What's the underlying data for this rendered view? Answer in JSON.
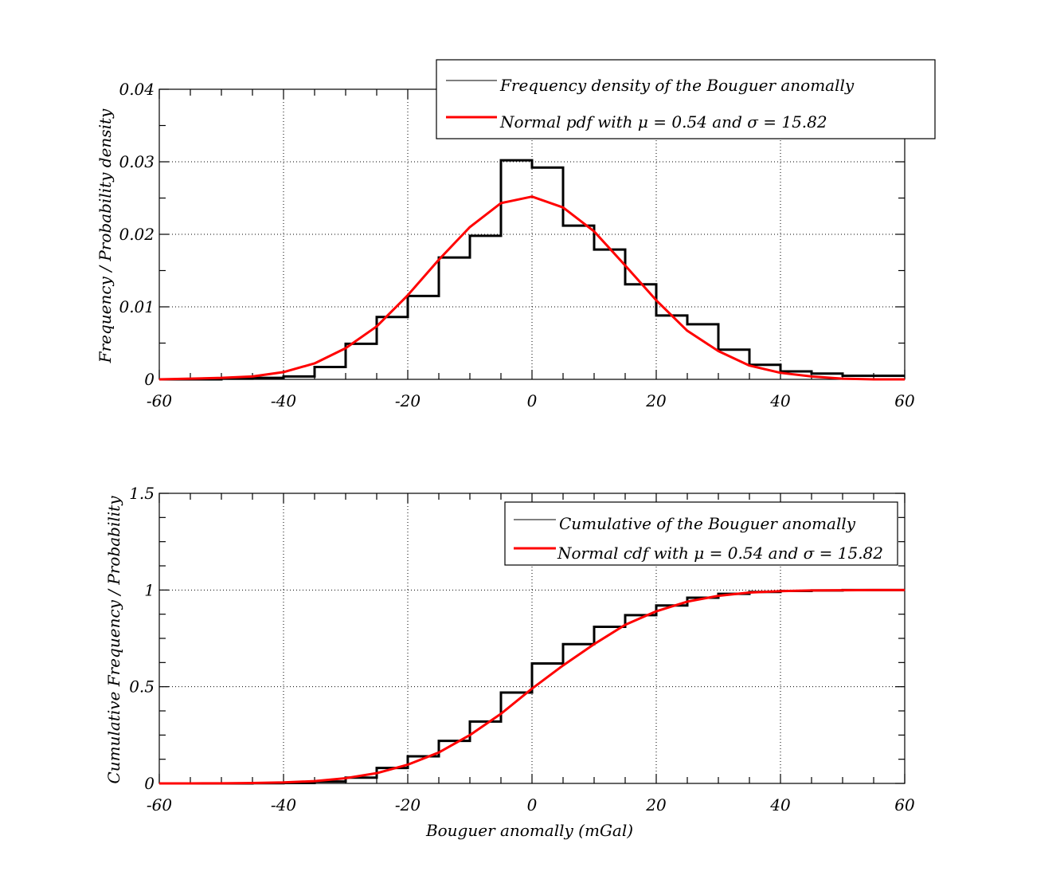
{
  "colors": {
    "histogram": "#000000",
    "normal": "#ff0000"
  },
  "chart_data": [
    {
      "type": "line",
      "subtype": "step-histogram",
      "title": "",
      "xlabel": "",
      "ylabel": "Frequency / Probability density",
      "xlim": [
        -60,
        60
      ],
      "ylim": [
        0,
        0.04
      ],
      "xticks": [
        "-60",
        "-40",
        "-20",
        "0",
        "20",
        "40",
        "60"
      ],
      "yticks": [
        "0",
        "0.01",
        "0.02",
        "0.03",
        "0.04"
      ],
      "grid": true,
      "legend_position": "top-right",
      "legend": [
        "Frequency density of the Bouguer anomally",
        "Normal pdf with μ = 0.54 and σ = 15.82"
      ],
      "series": [
        {
          "name": "Frequency density of the Bouguer anomally",
          "style": "step",
          "bin_edges": [
            -60,
            -55,
            -50,
            -45,
            -40,
            -35,
            -30,
            -25,
            -20,
            -15,
            -10,
            -5,
            0,
            5,
            10,
            15,
            20,
            25,
            30,
            35,
            40,
            45,
            50,
            55,
            60
          ],
          "values": [
            0.0,
            0.0,
            0.0001,
            0.0002,
            0.0004,
            0.0017,
            0.0049,
            0.0086,
            0.0115,
            0.0168,
            0.0198,
            0.0302,
            0.0292,
            0.0212,
            0.0179,
            0.0131,
            0.0088,
            0.0076,
            0.0041,
            0.002,
            0.0011,
            0.0008,
            0.0005,
            0.0005
          ]
        },
        {
          "name": "Normal pdf with μ = 0.54 and σ = 15.82",
          "style": "line",
          "x": [
            -60,
            -55,
            -50,
            -45,
            -40,
            -35,
            -30,
            -25,
            -20,
            -15,
            -10,
            -5,
            0,
            5,
            10,
            15,
            20,
            25,
            30,
            35,
            40,
            45,
            50,
            55,
            60
          ],
          "y": [
            0.0,
            0.0001,
            0.0002,
            0.0004,
            0.001,
            0.0022,
            0.0043,
            0.0073,
            0.0116,
            0.0165,
            0.021,
            0.0243,
            0.0252,
            0.0237,
            0.0204,
            0.0157,
            0.0109,
            0.0067,
            0.0039,
            0.0019,
            0.0009,
            0.0004,
            0.0001,
            0.0,
            0.0
          ]
        }
      ]
    },
    {
      "type": "line",
      "subtype": "step-cumulative",
      "title": "",
      "xlabel": "Bouguer anomally (mGal)",
      "ylabel": "Cumulative Frequency / Probability",
      "xlim": [
        -60,
        60
      ],
      "ylim": [
        0,
        1.5
      ],
      "xticks": [
        "-60",
        "-40",
        "-20",
        "0",
        "20",
        "40",
        "60"
      ],
      "yticks": [
        "0",
        "0.5",
        "1",
        "1.5"
      ],
      "grid": true,
      "legend_position": "top-right",
      "legend": [
        "Cumulative of the Bouguer anomally",
        "Normal cdf with μ = 0.54 and σ = 15.82"
      ],
      "series": [
        {
          "name": "Cumulative of the Bouguer anomally",
          "style": "step",
          "bin_edges": [
            -60,
            -55,
            -50,
            -45,
            -40,
            -35,
            -30,
            -25,
            -20,
            -15,
            -10,
            -5,
            0,
            5,
            10,
            15,
            20,
            25,
            30,
            35,
            40,
            45,
            50,
            55,
            60
          ],
          "values": [
            0.0,
            0.0,
            0.0,
            0.001,
            0.002,
            0.01,
            0.03,
            0.08,
            0.14,
            0.22,
            0.32,
            0.47,
            0.62,
            0.72,
            0.81,
            0.87,
            0.92,
            0.96,
            0.98,
            0.99,
            0.995,
            0.998,
            1.0,
            1.0
          ]
        },
        {
          "name": "Normal cdf with μ = 0.54 and σ = 15.82",
          "style": "line",
          "x": [
            -60,
            -55,
            -50,
            -45,
            -40,
            -35,
            -30,
            -25,
            -20,
            -15,
            -10,
            -5,
            0,
            5,
            10,
            15,
            20,
            25,
            30,
            35,
            40,
            45,
            50,
            55,
            60
          ],
          "y": [
            0.0,
            0.0002,
            0.0007,
            0.002,
            0.005,
            0.012,
            0.027,
            0.053,
            0.097,
            0.16,
            0.25,
            0.36,
            0.49,
            0.61,
            0.72,
            0.82,
            0.89,
            0.94,
            0.97,
            0.987,
            0.994,
            0.998,
            0.999,
            1.0,
            1.0
          ]
        }
      ]
    }
  ]
}
